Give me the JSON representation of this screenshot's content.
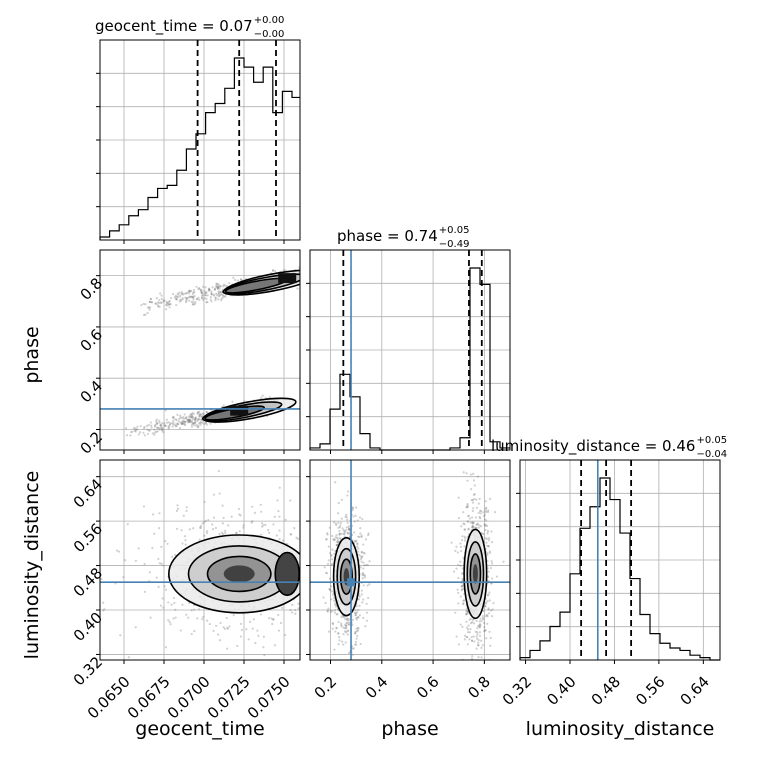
{
  "chart_data": {
    "type": "corner",
    "colors": {
      "truth": "#4682b4",
      "hist": "#000000",
      "grid": "#b0b0b0"
    },
    "parameters": [
      {
        "name": "geocent_time",
        "title": {
          "prefix": "geocent_time = 0.07",
          "sup": "+0.00",
          "sub": "−0.00"
        },
        "range": [
          0.0635,
          0.076
        ],
        "ticks": [
          0.065,
          0.0675,
          0.07,
          0.0725,
          0.075
        ],
        "tick_labels": [
          "0.0650",
          "0.0675",
          "0.0700",
          "0.0725",
          "0.0750"
        ],
        "quantiles": [
          0.0696,
          0.0722,
          0.0745
        ],
        "truth": null,
        "hist": {
          "edges": [
            0.0635,
            0.0641,
            0.0647,
            0.0653,
            0.0659,
            0.0665,
            0.0671,
            0.0677,
            0.0683,
            0.0689,
            0.0695,
            0.0701,
            0.0707,
            0.0713,
            0.0719,
            0.0725,
            0.0731,
            0.0737,
            0.0743,
            0.0749,
            0.0755,
            0.076
          ],
          "counts": [
            1,
            3,
            5,
            8,
            10,
            14,
            17,
            18,
            23,
            30,
            35,
            42,
            45,
            50,
            60,
            57,
            52,
            57,
            42,
            49,
            47
          ]
        }
      },
      {
        "name": "phase",
        "title": {
          "prefix": "phase = 0.74",
          "sup": "+0.05",
          "sub": "−0.49"
        },
        "range": [
          0.12,
          0.9
        ],
        "ticks": [
          0.2,
          0.4,
          0.6,
          0.8
        ],
        "tick_labels": [
          "0.2",
          "0.4",
          "0.6",
          "0.8"
        ],
        "quantiles": [
          0.25,
          0.74,
          0.79
        ],
        "truth": 0.28,
        "hist": {
          "edges": [
            0.12,
            0.159,
            0.198,
            0.237,
            0.276,
            0.315,
            0.354,
            0.393,
            0.432,
            0.471,
            0.51,
            0.549,
            0.588,
            0.627,
            0.666,
            0.705,
            0.744,
            0.783,
            0.822,
            0.861,
            0.9
          ],
          "counts": [
            1,
            3,
            20,
            37,
            26,
            8,
            1,
            0,
            0,
            0,
            0,
            0,
            0,
            0,
            1,
            6,
            89,
            81,
            4,
            1
          ]
        }
      },
      {
        "name": "luminosity_distance",
        "title": {
          "prefix": "luminosity_distance = 0.46",
          "sup": "+0.05",
          "sub": "−0.04"
        },
        "range": [
          0.31,
          0.67
        ],
        "ticks": [
          0.32,
          0.4,
          0.48,
          0.56,
          0.64
        ],
        "tick_labels": [
          "0.32",
          "0.40",
          "0.48",
          "0.56",
          "0.64"
        ],
        "quantiles": [
          0.42,
          0.465,
          0.51
        ],
        "truth": 0.45,
        "hist": {
          "edges": [
            0.31,
            0.328,
            0.346,
            0.364,
            0.382,
            0.4,
            0.418,
            0.436,
            0.454,
            0.472,
            0.49,
            0.508,
            0.526,
            0.544,
            0.562,
            0.58,
            0.598,
            0.616,
            0.634,
            0.652,
            0.67
          ],
          "counts": [
            1,
            4,
            8,
            14,
            20,
            36,
            55,
            64,
            76,
            67,
            53,
            34,
            19,
            11,
            7,
            5,
            4,
            2,
            1,
            0
          ]
        }
      }
    ],
    "pairs": [
      {
        "x": "geocent_time",
        "y": "phase",
        "truth_lines": {
          "x": null,
          "y": 0.28
        },
        "modes": [
          {
            "x_start": 0.066,
            "y_start": 0.68,
            "x_end": 0.076,
            "y_end": 0.8,
            "spread_y": 0.025,
            "peak_x": 0.0752
          },
          {
            "x_start": 0.065,
            "y_start": 0.19,
            "x_end": 0.0745,
            "y_end": 0.3,
            "spread_y": 0.025,
            "peak_x": 0.0722
          }
        ]
      },
      {
        "x": "geocent_time",
        "y": "luminosity_distance",
        "truth_lines": {
          "x": null,
          "y": 0.45
        },
        "modes": [
          {
            "x_center": 0.0722,
            "y_center": 0.465,
            "x_spread": 0.0022,
            "y_spread": 0.035,
            "peak_x": 0.0752
          }
        ]
      },
      {
        "x": "phase",
        "y": "luminosity_distance",
        "truth_lines": {
          "x": 0.28,
          "y": 0.45
        },
        "modes": [
          {
            "x_center": 0.262,
            "y_center": 0.46,
            "x_spread": 0.025,
            "y_spread": 0.035
          },
          {
            "x_center": 0.765,
            "y_center": 0.465,
            "x_spread": 0.022,
            "y_spread": 0.04
          }
        ]
      }
    ]
  }
}
